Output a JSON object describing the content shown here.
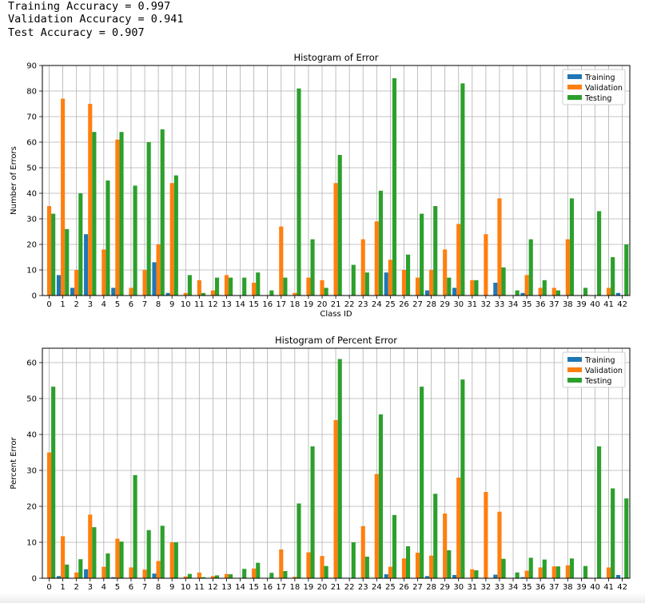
{
  "accuracy": {
    "training": "Training Accuracy = 0.997",
    "validation": "Validation Accuracy = 0.941",
    "test": "Test Accuracy = 0.907"
  },
  "colors": {
    "training": "#1f77b4",
    "validation": "#ff7f0e",
    "testing": "#2ca02c"
  },
  "chart_data": [
    {
      "type": "bar",
      "title": "Histogram of Error",
      "xlabel": "Class ID",
      "ylabel": "Number of Errors",
      "ylim": [
        0,
        90
      ],
      "yticks": [
        0,
        10,
        20,
        30,
        40,
        50,
        60,
        70,
        80,
        90
      ],
      "grid": true,
      "legend": "top-right",
      "categories": [
        "0",
        "1",
        "2",
        "3",
        "4",
        "5",
        "6",
        "7",
        "8",
        "9",
        "10",
        "11",
        "12",
        "13",
        "14",
        "15",
        "16",
        "17",
        "18",
        "19",
        "20",
        "21",
        "22",
        "23",
        "24",
        "25",
        "26",
        "27",
        "28",
        "29",
        "30",
        "31",
        "32",
        "33",
        "34",
        "35",
        "36",
        "37",
        "38",
        "39",
        "40",
        "41",
        "42"
      ],
      "series": [
        {
          "name": "Training",
          "color": "#1f77b4",
          "values": [
            0,
            8,
            3,
            24,
            0,
            3,
            0,
            0,
            13,
            1,
            0,
            0,
            0,
            0,
            0,
            0,
            0,
            0,
            0,
            0,
            0,
            0,
            0,
            0,
            0,
            9,
            0,
            0,
            2,
            0,
            3,
            0,
            0,
            5,
            0,
            1,
            0,
            0,
            0,
            0,
            0,
            0,
            1
          ]
        },
        {
          "name": "Validation",
          "color": "#ff7f0e",
          "values": [
            35,
            77,
            10,
            75,
            18,
            61,
            3,
            10,
            20,
            44,
            1,
            6,
            2,
            8,
            0,
            5,
            0,
            27,
            1,
            7,
            6,
            44,
            0,
            22,
            29,
            14,
            10,
            7,
            10,
            18,
            28,
            6,
            24,
            38,
            0,
            8,
            3,
            3,
            22,
            0,
            0,
            3,
            0
          ]
        },
        {
          "name": "Testing",
          "color": "#2ca02c",
          "values": [
            32,
            26,
            40,
            64,
            45,
            64,
            43,
            60,
            65,
            47,
            8,
            1,
            7,
            7,
            7,
            9,
            2,
            7,
            81,
            22,
            3,
            55,
            12,
            9,
            41,
            85,
            16,
            32,
            35,
            7,
            83,
            6,
            0,
            11,
            2,
            22,
            6,
            2,
            38,
            3,
            33,
            15,
            20
          ]
        }
      ]
    },
    {
      "type": "bar",
      "title": "Histogram of Percent Error",
      "xlabel": "Class ID",
      "ylabel": "Percent Error",
      "ylim": [
        0,
        64
      ],
      "yticks": [
        0,
        10,
        20,
        30,
        40,
        50,
        60
      ],
      "grid": true,
      "legend": "top-right",
      "categories": [
        "0",
        "1",
        "2",
        "3",
        "4",
        "5",
        "6",
        "7",
        "8",
        "9",
        "10",
        "11",
        "12",
        "13",
        "14",
        "15",
        "16",
        "17",
        "18",
        "19",
        "20",
        "21",
        "22",
        "23",
        "24",
        "25",
        "26",
        "27",
        "28",
        "29",
        "30",
        "31",
        "32",
        "33",
        "34",
        "35",
        "36",
        "37",
        "38",
        "39",
        "40",
        "41",
        "42"
      ],
      "series": [
        {
          "name": "Training",
          "color": "#1f77b4",
          "values": [
            0,
            0.6,
            0,
            2.5,
            0,
            0.3,
            0,
            0,
            1.3,
            0.1,
            0,
            0,
            0,
            0,
            0,
            0,
            0,
            0,
            0,
            0,
            0,
            0,
            0,
            0,
            0,
            1.1,
            0,
            0,
            0.6,
            0,
            0.9,
            0,
            0,
            1,
            0,
            0.3,
            0,
            0,
            0,
            0,
            0,
            0,
            0.9
          ]
        },
        {
          "name": "Validation",
          "color": "#ff7f0e",
          "values": [
            35,
            11.7,
            1.6,
            17.7,
            3.2,
            11,
            3,
            2.4,
            4.8,
            10,
            0.5,
            1.6,
            0.6,
            1.2,
            0,
            2.7,
            0,
            8,
            0.4,
            7.2,
            6.2,
            44,
            0,
            14.5,
            29,
            3.2,
            5.5,
            7.1,
            6.3,
            18,
            28,
            2.5,
            24,
            18.5,
            0,
            2.1,
            3,
            3.3,
            3.6,
            0,
            0,
            3,
            0
          ]
        },
        {
          "name": "Testing",
          "color": "#2ca02c",
          "values": [
            53.3,
            3.8,
            5.3,
            14.2,
            6.9,
            10.2,
            28.7,
            13.4,
            14.6,
            10,
            1.2,
            0.3,
            0.8,
            1.1,
            2.6,
            4.3,
            1.5,
            2,
            20.8,
            36.7,
            3.4,
            61,
            10,
            6,
            45.6,
            17.6,
            8.9,
            53.3,
            23.5,
            7.8,
            55.3,
            2.2,
            0,
            5.4,
            1.6,
            5.7,
            5.2,
            3.3,
            5.5,
            3.4,
            36.7,
            25,
            22.2
          ]
        }
      ]
    }
  ]
}
